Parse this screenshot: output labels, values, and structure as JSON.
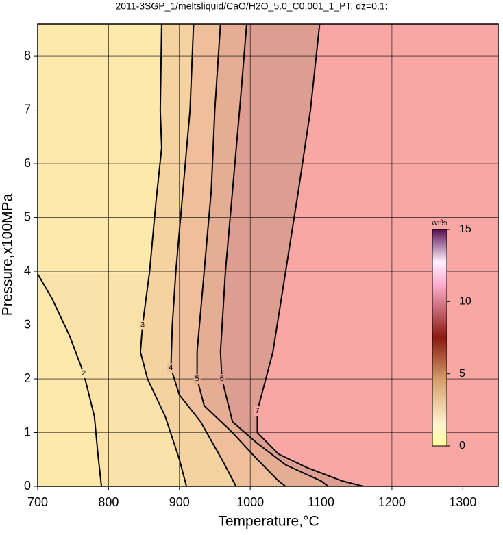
{
  "chart_data": {
    "type": "contour",
    "title": "2011-3SGP_1/meltsliquid/CaO/H2O_5.0_C0.001_1_PT, dz=0.1:",
    "x_label": "Temperature,°C",
    "y_label": "Pressure,x100MPa",
    "xlim": [
      700,
      1350
    ],
    "ylim": [
      0,
      8.6
    ],
    "xticks": [
      700,
      800,
      900,
      1000,
      1100,
      1200,
      1300
    ],
    "yticks": [
      0,
      1,
      2,
      3,
      4,
      5,
      6,
      7,
      8
    ],
    "grid": true,
    "background": "#fde9ac",
    "contours": [
      {
        "level": 2,
        "color": "#fbe2a8",
        "x": [
          700,
          720,
          745,
          765,
          780,
          785,
          790
        ],
        "y": [
          3.95,
          3.5,
          2.8,
          2.1,
          1.3,
          0.6,
          0
        ]
      },
      {
        "level": 3,
        "color": "#f5d3a0",
        "x": [
          875,
          873,
          875,
          867,
          858,
          848,
          845,
          855,
          880,
          900,
          910
        ],
        "y": [
          8.6,
          7,
          6.3,
          5.3,
          4,
          3,
          2.5,
          2,
          1.3,
          0.5,
          0
        ]
      },
      {
        "level": 4,
        "color": "#eebf9a",
        "x": [
          920,
          915,
          905,
          895,
          890,
          888,
          900,
          930,
          960,
          980
        ],
        "y": [
          8.6,
          7,
          5.5,
          4,
          3,
          2.2,
          1.7,
          1.2,
          0.5,
          0
        ]
      },
      {
        "level": 5,
        "color": "#e6ad95",
        "x": [
          958,
          950,
          945,
          935,
          925,
          925,
          935,
          975,
          1010,
          1040,
          1050
        ],
        "y": [
          8.6,
          7,
          5.5,
          4,
          2.5,
          2,
          1.5,
          1,
          0.5,
          0.1,
          0
        ]
      },
      {
        "level": 6,
        "color": "#dc9e90",
        "x": [
          995,
          985,
          975,
          965,
          958,
          960,
          975,
          1010,
          1050,
          1100,
          1110
        ],
        "y": [
          8.6,
          7,
          5.5,
          4,
          2.5,
          2,
          1.2,
          0.8,
          0.4,
          0.1,
          0
        ]
      },
      {
        "level": 7,
        "color": "#f8a7a5",
        "x": [
          1098,
          1085,
          1068,
          1050,
          1032,
          1022,
          1010,
          1010,
          1040,
          1080,
          1130,
          1160
        ],
        "y": [
          8.6,
          7,
          5.5,
          4,
          2.5,
          2,
          1.4,
          1.0,
          0.6,
          0.35,
          0.1,
          0
        ]
      }
    ],
    "colorbar": {
      "label": "wt%",
      "lim": [
        0,
        15
      ],
      "ticks": [
        0,
        5,
        10,
        15
      ]
    }
  }
}
